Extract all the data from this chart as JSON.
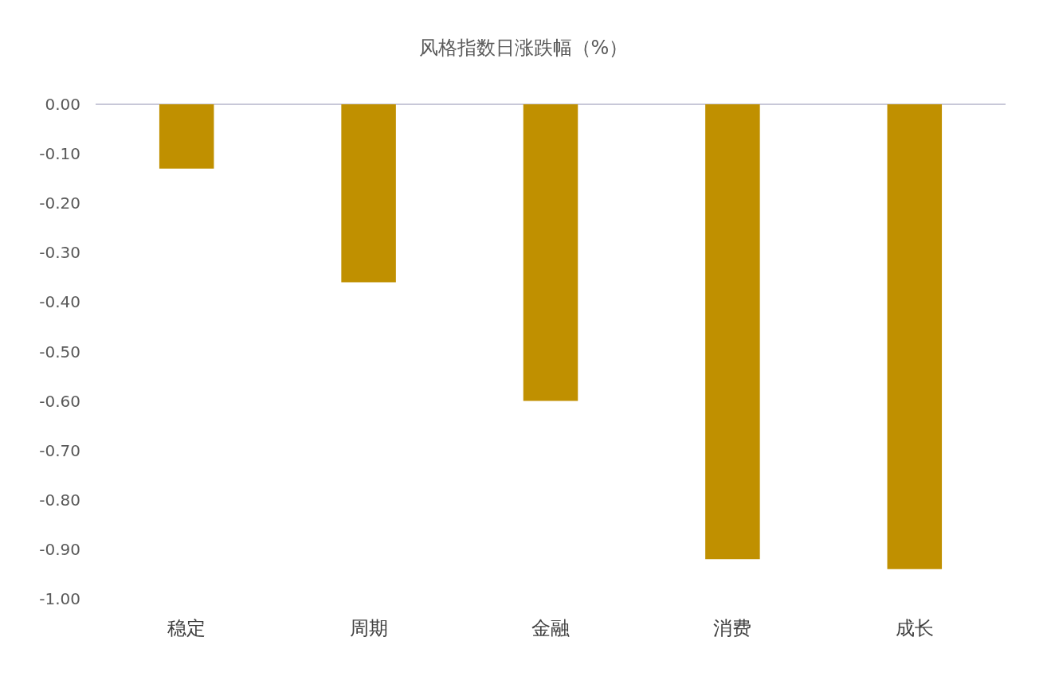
{
  "chart_data": {
    "type": "bar",
    "title": "风格指数日涨跌幅（%）",
    "categories": [
      "稳定",
      "周期",
      "金融",
      "消费",
      "成长"
    ],
    "values": [
      -0.13,
      -0.36,
      -0.6,
      -0.92,
      -0.94
    ],
    "color": "#c09000",
    "ylim": [
      -1.0,
      0.0
    ],
    "yticks": [
      {
        "value": 0,
        "label": "0.00"
      },
      {
        "value": -0.1,
        "label": "-0.10"
      },
      {
        "value": -0.2,
        "label": "-0.20"
      },
      {
        "value": -0.3,
        "label": "-0.30"
      },
      {
        "value": -0.4,
        "label": "-0.40"
      },
      {
        "value": -0.5,
        "label": "-0.50"
      },
      {
        "value": -0.6,
        "label": "-0.60"
      },
      {
        "value": -0.7,
        "label": "-0.70"
      },
      {
        "value": -0.8,
        "label": "-0.80"
      },
      {
        "value": -0.9,
        "label": "-0.90"
      },
      {
        "value": -1.0,
        "label": "-1.00"
      }
    ]
  }
}
